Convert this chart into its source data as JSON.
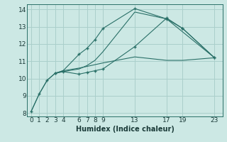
{
  "xlabel": "Humidex (Indice chaleur)",
  "bg_color": "#cce8e4",
  "grid_color": "#aacfcb",
  "line_color": "#2a7068",
  "ylim": [
    7.8,
    14.3
  ],
  "xlim": [
    -0.5,
    24.0
  ],
  "yticks": [
    8,
    9,
    10,
    11,
    12,
    13,
    14
  ],
  "xticks": [
    0,
    1,
    2,
    3,
    4,
    6,
    7,
    8,
    9,
    13,
    17,
    19,
    23
  ],
  "lines": [
    {
      "x": [
        0,
        1,
        2,
        3,
        4,
        6,
        7,
        8,
        9,
        13,
        17,
        19,
        23
      ],
      "y": [
        8.1,
        9.1,
        9.9,
        10.3,
        10.4,
        10.25,
        10.35,
        10.45,
        10.55,
        11.85,
        13.5,
        12.9,
        11.2
      ],
      "marker": true
    },
    {
      "x": [
        0,
        1,
        2,
        3,
        4,
        6,
        7,
        8,
        9,
        13,
        17,
        23
      ],
      "y": [
        8.1,
        9.1,
        9.9,
        10.3,
        10.4,
        10.55,
        10.75,
        11.05,
        11.55,
        13.85,
        13.45,
        11.2
      ],
      "marker": false
    },
    {
      "x": [
        3,
        4,
        6,
        7,
        8,
        9,
        13,
        17,
        19,
        23
      ],
      "y": [
        10.3,
        10.45,
        11.4,
        11.75,
        12.25,
        12.9,
        14.05,
        13.45,
        12.9,
        11.2
      ],
      "marker": true
    },
    {
      "x": [
        3,
        4,
        6,
        7,
        8,
        9,
        13,
        17,
        19,
        23
      ],
      "y": [
        10.3,
        10.45,
        10.6,
        10.7,
        10.8,
        10.9,
        11.25,
        11.05,
        11.05,
        11.2
      ],
      "marker": false
    }
  ]
}
